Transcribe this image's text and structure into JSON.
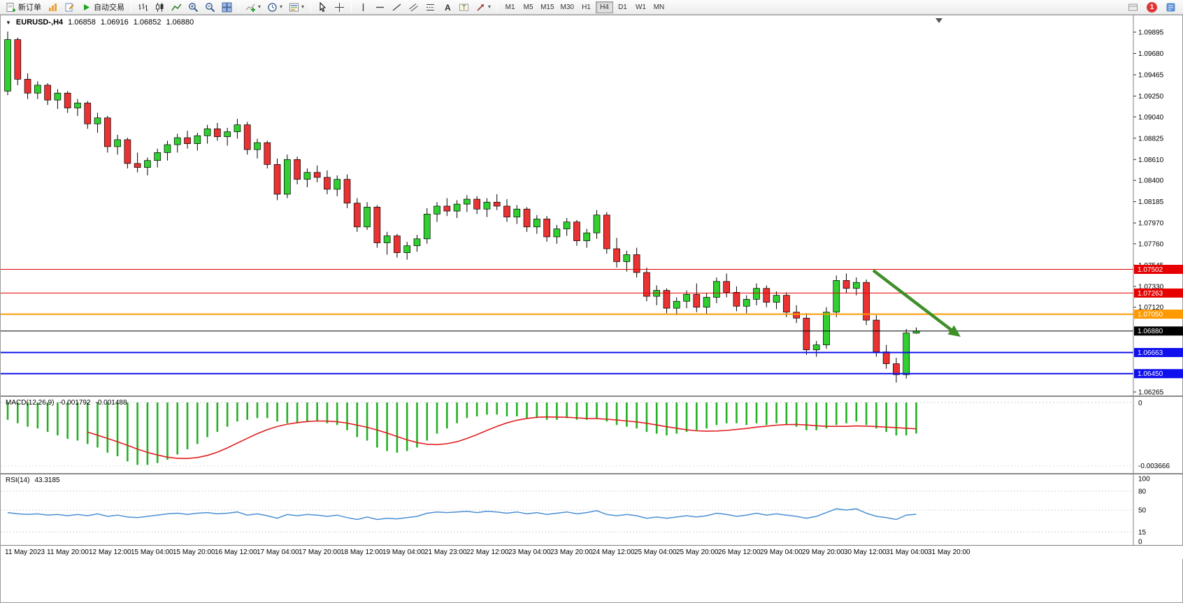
{
  "toolbar": {
    "new_order": "新订单",
    "autotrading": "自动交易",
    "timeframes": [
      "M1",
      "M5",
      "M15",
      "M30",
      "H1",
      "H4",
      "D1",
      "W1",
      "MN"
    ],
    "active_timeframe": "H4",
    "notification_count": "1"
  },
  "header": {
    "symbol": "EURUSD-,H4",
    "open": "1.06858",
    "high": "1.06916",
    "low": "1.06852",
    "close": "1.06880"
  },
  "panels": {
    "macd_title": "MACD(12,26,9)",
    "macd_value": "-0.001792",
    "macd_signal": "-0.001488",
    "rsi_title": "RSI(14)",
    "rsi_value": "43.3185"
  },
  "chart_data": {
    "type": "candlestick",
    "symbol": "EURUSD-",
    "timeframe": "H4",
    "price_range": [
      1.06265,
      1.09895
    ],
    "ohlc_current": {
      "open": 1.06858,
      "high": 1.06916,
      "low": 1.06852,
      "close": 1.0688
    },
    "y_axis_ticks": [
      1.09895,
      1.0968,
      1.09465,
      1.0925,
      1.0904,
      1.08825,
      1.0861,
      1.084,
      1.08185,
      1.0797,
      1.0776,
      1.07545,
      1.0733,
      1.0712,
      1.06265
    ],
    "horizontal_lines": [
      {
        "price": 1.07502,
        "color": "#e60000",
        "width": 1
      },
      {
        "price": 1.07263,
        "color": "#e60000",
        "width": 1
      },
      {
        "price": 1.0705,
        "color": "#ff9900",
        "width": 2
      },
      {
        "price": 1.0688,
        "color": "#000000",
        "width": 1
      },
      {
        "price": 1.06663,
        "color": "#1010ee",
        "width": 2
      },
      {
        "price": 1.0645,
        "color": "#1010ee",
        "width": 2
      }
    ],
    "candles": [
      [
        1.093,
        1.099,
        1.0926,
        1.0982
      ],
      [
        1.0982,
        1.0984,
        1.0936,
        1.0942
      ],
      [
        1.0942,
        1.0948,
        1.0922,
        1.0928
      ],
      [
        1.0928,
        1.094,
        1.0922,
        1.0936
      ],
      [
        1.0936,
        1.0938,
        1.0916,
        1.0921
      ],
      [
        1.0921,
        1.0932,
        1.0912,
        1.0928
      ],
      [
        1.0928,
        1.093,
        1.0908,
        1.0913
      ],
      [
        1.0913,
        1.0922,
        1.0905,
        1.0918
      ],
      [
        1.0918,
        1.092,
        1.0892,
        1.0897
      ],
      [
        1.0897,
        1.0908,
        1.0888,
        1.0903
      ],
      [
        1.0903,
        1.0905,
        1.0868,
        1.0874
      ],
      [
        1.0874,
        1.0886,
        1.0866,
        1.0881
      ],
      [
        1.0881,
        1.0883,
        1.0852,
        1.0857
      ],
      [
        1.0857,
        1.0868,
        1.0848,
        1.0853
      ],
      [
        1.0853,
        1.0863,
        1.0845,
        1.086
      ],
      [
        1.086,
        1.0872,
        1.0853,
        1.0868
      ],
      [
        1.0868,
        1.088,
        1.086,
        1.0876
      ],
      [
        1.0876,
        1.0887,
        1.0868,
        1.0883
      ],
      [
        1.0883,
        1.089,
        1.0872,
        1.0877
      ],
      [
        1.0877,
        1.0888,
        1.087,
        1.0885
      ],
      [
        1.0885,
        1.0896,
        1.0877,
        1.0892
      ],
      [
        1.0892,
        1.0898,
        1.088,
        1.0884
      ],
      [
        1.0884,
        1.0893,
        1.0875,
        1.0889
      ],
      [
        1.0889,
        1.0902,
        1.0882,
        1.0896
      ],
      [
        1.0896,
        1.0899,
        1.0866,
        1.0871
      ],
      [
        1.0871,
        1.0882,
        1.0862,
        1.0878
      ],
      [
        1.0878,
        1.088,
        1.0852,
        1.0856
      ],
      [
        1.0856,
        1.0862,
        1.082,
        1.0826
      ],
      [
        1.0826,
        1.0866,
        1.0822,
        1.0861
      ],
      [
        1.0861,
        1.0864,
        1.0836,
        1.0841
      ],
      [
        1.0841,
        1.0852,
        1.0833,
        1.0848
      ],
      [
        1.0848,
        1.0855,
        1.0838,
        1.0843
      ],
      [
        1.0843,
        1.085,
        1.0826,
        1.0831
      ],
      [
        1.0831,
        1.0845,
        1.0824,
        1.0841
      ],
      [
        1.0841,
        1.0846,
        1.0812,
        1.0817
      ],
      [
        1.0817,
        1.0822,
        1.0788,
        1.0793
      ],
      [
        1.0793,
        1.0818,
        1.079,
        1.0813
      ],
      [
        1.0813,
        1.0815,
        1.0772,
        1.0777
      ],
      [
        1.0777,
        1.0788,
        1.0765,
        1.0784
      ],
      [
        1.0784,
        1.0786,
        1.0762,
        1.0767
      ],
      [
        1.0767,
        1.0778,
        1.076,
        1.0774
      ],
      [
        1.0774,
        1.0785,
        1.0768,
        1.0781
      ],
      [
        1.0781,
        1.0812,
        1.0776,
        1.0806
      ],
      [
        1.0806,
        1.0818,
        1.0798,
        1.0814
      ],
      [
        1.0814,
        1.0822,
        1.0804,
        1.0809
      ],
      [
        1.0809,
        1.082,
        1.0802,
        1.0816
      ],
      [
        1.0816,
        1.0825,
        1.0808,
        1.0821
      ],
      [
        1.0821,
        1.0824,
        1.0806,
        1.0811
      ],
      [
        1.0811,
        1.0822,
        1.0803,
        1.0818
      ],
      [
        1.0818,
        1.0826,
        1.081,
        1.0814
      ],
      [
        1.0814,
        1.0821,
        1.0798,
        1.0803
      ],
      [
        1.0803,
        1.0815,
        1.0796,
        1.0811
      ],
      [
        1.0811,
        1.0813,
        1.0788,
        1.0793
      ],
      [
        1.0793,
        1.0805,
        1.0786,
        1.0801
      ],
      [
        1.0801,
        1.0804,
        1.0778,
        1.0783
      ],
      [
        1.0783,
        1.0795,
        1.0776,
        1.0791
      ],
      [
        1.0791,
        1.0802,
        1.0784,
        1.0798
      ],
      [
        1.0798,
        1.08,
        1.0774,
        1.0779
      ],
      [
        1.0779,
        1.0791,
        1.0772,
        1.0787
      ],
      [
        1.0787,
        1.081,
        1.0781,
        1.0805
      ],
      [
        1.0805,
        1.0808,
        1.0766,
        1.0771
      ],
      [
        1.0771,
        1.0782,
        1.0752,
        1.0758
      ],
      [
        1.0758,
        1.0769,
        1.0748,
        1.0765
      ],
      [
        1.0765,
        1.0772,
        1.0742,
        1.0747
      ],
      [
        1.0747,
        1.0752,
        1.0718,
        1.0723
      ],
      [
        1.0723,
        1.0734,
        1.0714,
        1.0729
      ],
      [
        1.0729,
        1.0731,
        1.0706,
        1.0711
      ],
      [
        1.0711,
        1.0722,
        1.0704,
        1.0718
      ],
      [
        1.0718,
        1.0729,
        1.0711,
        1.0725
      ],
      [
        1.0725,
        1.0736,
        1.0707,
        1.0712
      ],
      [
        1.0712,
        1.0726,
        1.0705,
        1.0722
      ],
      [
        1.0722,
        1.0742,
        1.0716,
        1.0738
      ],
      [
        1.0738,
        1.0746,
        1.0722,
        1.0727
      ],
      [
        1.0727,
        1.0733,
        1.0708,
        1.0713
      ],
      [
        1.0713,
        1.0724,
        1.0706,
        1.072
      ],
      [
        1.072,
        1.0736,
        1.0714,
        1.0731
      ],
      [
        1.0731,
        1.0734,
        1.0712,
        1.0717
      ],
      [
        1.0717,
        1.0728,
        1.071,
        1.0724
      ],
      [
        1.0724,
        1.0727,
        1.0702,
        1.0707
      ],
      [
        1.0707,
        1.0714,
        1.0696,
        1.0701
      ],
      [
        1.0701,
        1.0706,
        1.0664,
        1.0669
      ],
      [
        1.0669,
        1.0678,
        1.0662,
        1.0674
      ],
      [
        1.0674,
        1.0712,
        1.067,
        1.0707
      ],
      [
        1.0707,
        1.0744,
        1.0702,
        1.0739
      ],
      [
        1.0739,
        1.0746,
        1.0726,
        1.0731
      ],
      [
        1.0731,
        1.0742,
        1.0724,
        1.0737
      ],
      [
        1.0737,
        1.074,
        1.0694,
        1.0699
      ],
      [
        1.0699,
        1.0704,
        1.0662,
        1.0667
      ],
      [
        1.0667,
        1.0674,
        1.065,
        1.0655
      ],
      [
        1.0655,
        1.0661,
        1.0636,
        1.0644
      ],
      [
        1.0644,
        1.069,
        1.064,
        1.0686
      ],
      [
        1.06858,
        1.06916,
        1.06852,
        1.0688
      ]
    ],
    "trend_arrow": {
      "from_price": 1.0752,
      "to_price": 1.0686,
      "color": "#3f8f29",
      "direction": "down-right"
    },
    "macd": {
      "params": "12,26,9",
      "main_value": -0.001792,
      "signal_value": -0.001488,
      "axis_max": 0,
      "axis_min": -0.003666,
      "histogram": [
        -0.001,
        -0.0012,
        -0.0014,
        -0.0015,
        -0.0017,
        -0.0019,
        -0.0021,
        -0.0022,
        -0.0024,
        -0.0026,
        -0.0029,
        -0.0031,
        -0.0034,
        -0.0036,
        -0.0036,
        -0.0035,
        -0.0033,
        -0.003,
        -0.0027,
        -0.0024,
        -0.002,
        -0.0017,
        -0.0014,
        -0.0011,
        -0.001,
        -0.0009,
        -0.0009,
        -0.0011,
        -0.0012,
        -0.0012,
        -0.0011,
        -0.0011,
        -0.0012,
        -0.0013,
        -0.0016,
        -0.002,
        -0.0022,
        -0.0026,
        -0.0028,
        -0.0029,
        -0.0028,
        -0.0026,
        -0.0022,
        -0.0018,
        -0.0015,
        -0.0012,
        -0.0009,
        -0.0008,
        -0.0007,
        -0.0007,
        -0.0008,
        -0.0008,
        -0.0009,
        -0.0009,
        -0.001,
        -0.001,
        -0.0009,
        -0.001,
        -0.001,
        -0.0009,
        -0.0011,
        -0.0013,
        -0.0014,
        -0.0015,
        -0.0017,
        -0.0018,
        -0.0019,
        -0.0018,
        -0.0017,
        -0.0016,
        -0.0015,
        -0.0013,
        -0.0012,
        -0.0012,
        -0.0013,
        -0.0012,
        -0.0013,
        -0.0012,
        -0.0013,
        -0.0014,
        -0.0016,
        -0.0016,
        -0.0015,
        -0.0013,
        -0.0012,
        -0.0011,
        -0.0013,
        -0.0015,
        -0.0017,
        -0.0019,
        -0.0019,
        -0.001792
      ]
    },
    "rsi": {
      "period": 14,
      "current": 43.3185,
      "levels": [
        100,
        80,
        50,
        15,
        0
      ],
      "values": [
        46,
        44,
        43,
        44,
        42,
        43,
        41,
        43,
        41,
        44,
        40,
        42,
        39,
        38,
        40,
        42,
        44,
        45,
        43,
        45,
        46,
        44,
        45,
        47,
        42,
        44,
        41,
        37,
        43,
        41,
        43,
        42,
        40,
        42,
        38,
        35,
        39,
        35,
        37,
        36,
        38,
        40,
        45,
        47,
        46,
        47,
        48,
        46,
        48,
        47,
        45,
        47,
        44,
        46,
        43,
        45,
        47,
        44,
        46,
        49,
        43,
        41,
        43,
        41,
        37,
        39,
        37,
        39,
        41,
        39,
        41,
        45,
        43,
        40,
        42,
        45,
        42,
        44,
        42,
        40,
        37,
        40,
        46,
        52,
        50,
        52,
        45,
        40,
        38,
        35,
        42,
        43.3185
      ]
    },
    "x_axis_labels": [
      "11 May 2023",
      "11 May 20:00",
      "12 May 12:00",
      "15 May 04:00",
      "15 May 20:00",
      "16 May 12:00",
      "17 May 04:00",
      "17 May 20:00",
      "18 May 12:00",
      "19 May 04:00",
      "21 May 23:00",
      "22 May 12:00",
      "23 May 04:00",
      "23 May 20:00",
      "24 May 12:00",
      "25 May 04:00",
      "25 May 20:00",
      "26 May 12:00",
      "29 May 04:00",
      "29 May 20:00",
      "30 May 12:00",
      "31 May 04:00",
      "31 May 20:00"
    ]
  }
}
